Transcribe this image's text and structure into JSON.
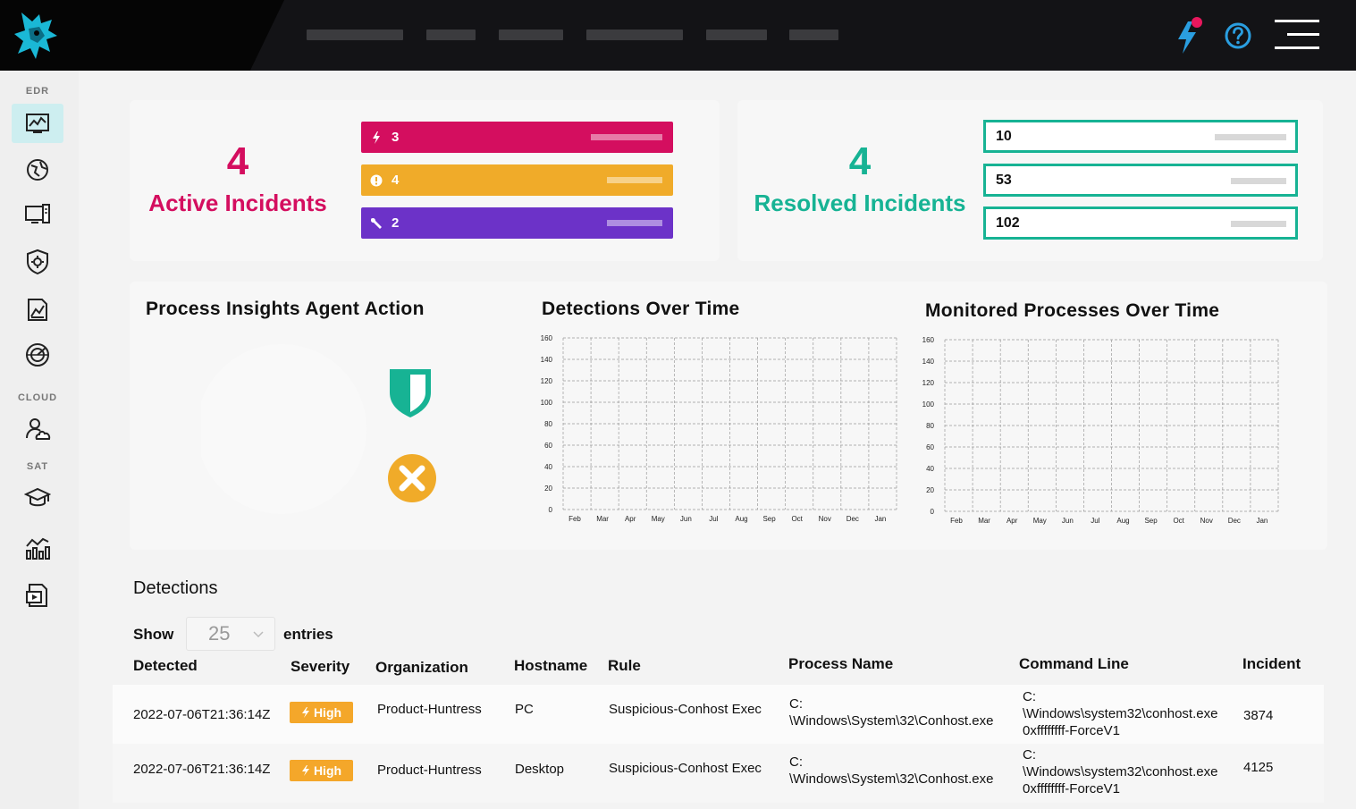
{
  "colors": {
    "active": "#d40e5f",
    "warning": "#f0ab29",
    "purple": "#6c32c8",
    "resolved": "#17b394",
    "accent_blue": "#2a9ee0"
  },
  "topbar": {
    "icons": [
      "logo-icon",
      "bolt-notification-icon",
      "help-icon",
      "hamburger-menu-icon"
    ]
  },
  "sidebar": {
    "sections": [
      {
        "label": "EDR",
        "items": [
          "activity-chart-icon",
          "globe-icon",
          "monitor-icon",
          "shield-gear-icon",
          "document-chart-icon",
          "radar-globe-icon"
        ]
      },
      {
        "label": "CLOUD",
        "items": [
          "cloud-user-icon"
        ]
      },
      {
        "label": "SAT",
        "items": [
          "graduation-cap-icon",
          "bar-chart-icon",
          "video-file-icon"
        ]
      }
    ]
  },
  "active_incidents": {
    "count": "4",
    "label": "Active Incidents",
    "bars": [
      {
        "icon": "bolt-icon",
        "value": "3",
        "color": "#d40e5f"
      },
      {
        "icon": "alert-icon",
        "value": "4",
        "color": "#f0ab29"
      },
      {
        "icon": "wrench-icon",
        "value": "2",
        "color": "#6c32c8"
      }
    ]
  },
  "resolved_incidents": {
    "count": "4",
    "label": "Resolved Incidents",
    "boxes": [
      "10",
      "53",
      "102"
    ]
  },
  "process_insights": {
    "title": "Process Insights Agent Action",
    "icons": [
      "shield-icon",
      "x-circle-icon"
    ]
  },
  "detections_chart": {
    "title": "Detections Over Time"
  },
  "monitored_chart": {
    "title": "Monitored Processes Over Time"
  },
  "chart_data": [
    {
      "type": "line",
      "title": "Detections Over Time",
      "categories": [
        "Feb",
        "Mar",
        "Apr",
        "May",
        "Jun",
        "Jul",
        "Aug",
        "Sep",
        "Oct",
        "Nov",
        "Dec",
        "Jan"
      ],
      "y_ticks": [
        "0",
        "20",
        "40",
        "60",
        "80",
        "100",
        "120",
        "140",
        "160"
      ],
      "ylim": [
        0,
        160
      ],
      "series": [],
      "grid": true
    },
    {
      "type": "line",
      "title": "Monitored Processes Over Time",
      "categories": [
        "Feb",
        "Mar",
        "Apr",
        "May",
        "Jun",
        "Jul",
        "Aug",
        "Sep",
        "Oct",
        "Nov",
        "Dec",
        "Jan"
      ],
      "y_ticks": [
        "0",
        "20",
        "40",
        "60",
        "80",
        "100",
        "120",
        "140",
        "160"
      ],
      "ylim": [
        0,
        160
      ],
      "series": [],
      "grid": true
    }
  ],
  "detections": {
    "title": "Detections",
    "show_label": "Show",
    "entries_value": "25",
    "entries_label": "entries",
    "columns": [
      "Detected",
      "Severity",
      "Organization",
      "Hostname",
      "Rule",
      "Process Name",
      "Command Line",
      "Incident"
    ],
    "rows": [
      {
        "detected": "2022-07-06T21:36:14Z",
        "severity": "High",
        "organization": "Product-Huntress",
        "hostname": "PC",
        "rule": "Suspicious-Conhost Exec",
        "process_name_1": "C:",
        "process_name_2": "\\Windows\\System\\32\\Conhost.exe",
        "command_line_1": "C:",
        "command_line_2": "\\Windows\\system32\\conhost.exe",
        "command_line_3": "0xffffffff-ForceV1",
        "incident": "3874"
      },
      {
        "detected": "2022-07-06T21:36:14Z",
        "severity": "High",
        "organization": "Product-Huntress",
        "hostname": "Desktop",
        "rule": "Suspicious-Conhost Exec",
        "process_name_1": "C:",
        "process_name_2": "\\Windows\\System\\32\\Conhost.exe",
        "command_line_1": "C:",
        "command_line_2": "\\Windows\\system32\\conhost.exe",
        "command_line_3": "0xffffffff-ForceV1",
        "incident": "4125"
      }
    ]
  }
}
